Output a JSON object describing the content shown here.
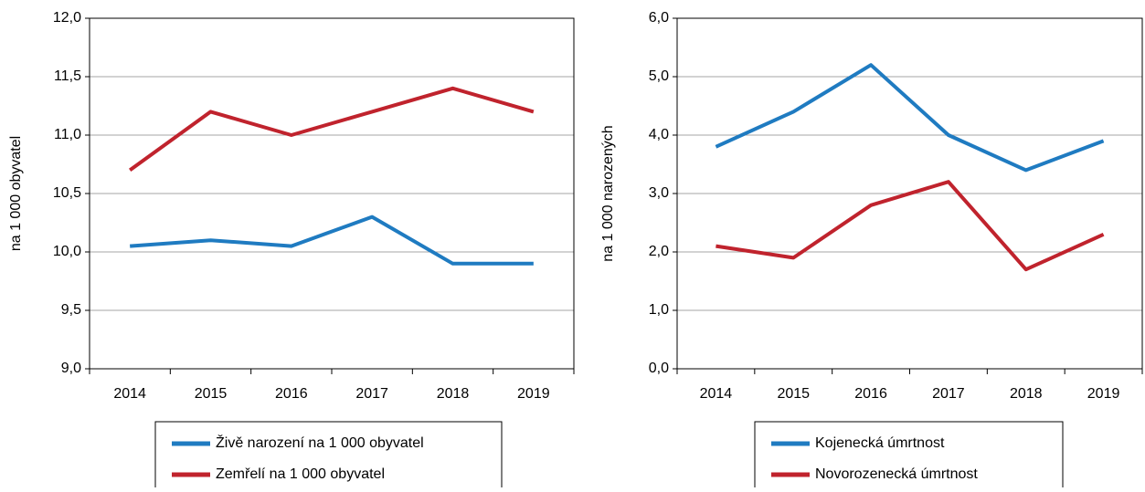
{
  "chart_data": [
    {
      "type": "line",
      "ylabel": "na 1 000 obyvatel",
      "categories": [
        "2014",
        "2015",
        "2016",
        "2017",
        "2018",
        "2019"
      ],
      "series": [
        {
          "name": "Živě narození na 1 000 obyvatel",
          "color": "#1f7bc1",
          "values": [
            10.05,
            10.1,
            10.05,
            10.3,
            9.9,
            9.9
          ]
        },
        {
          "name": "Zemřelí na 1 000 obyvatel",
          "color": "#c0232d",
          "values": [
            10.7,
            11.2,
            11.0,
            11.2,
            11.4,
            11.2
          ]
        }
      ],
      "ylim": [
        9,
        12
      ],
      "yticks": [
        {
          "value": 9,
          "label": "9,0"
        },
        {
          "value": 9.5,
          "label": "9,5"
        },
        {
          "value": 10,
          "label": "10,0"
        },
        {
          "value": 10.5,
          "label": "10,5"
        },
        {
          "value": 11,
          "label": "11,0"
        },
        {
          "value": 11.5,
          "label": "11,5"
        },
        {
          "value": 12,
          "label": "12,0"
        }
      ],
      "grid": true,
      "legend": "bottom"
    },
    {
      "type": "line",
      "ylabel": "na 1 000 narozených",
      "categories": [
        "2014",
        "2015",
        "2016",
        "2017",
        "2018",
        "2019"
      ],
      "series": [
        {
          "name": "Kojenecká úmrtnost",
          "color": "#1f7bc1",
          "values": [
            3.8,
            4.4,
            5.2,
            4.0,
            3.4,
            3.9
          ]
        },
        {
          "name": "Novorozenecká úmrtnost",
          "color": "#c0232d",
          "values": [
            2.1,
            1.9,
            2.8,
            3.2,
            1.7,
            2.3
          ]
        }
      ],
      "ylim": [
        0,
        6
      ],
      "yticks": [
        {
          "value": 0,
          "label": "0,0"
        },
        {
          "value": 1,
          "label": "1,0"
        },
        {
          "value": 2,
          "label": "2,0"
        },
        {
          "value": 3,
          "label": "3,0"
        },
        {
          "value": 4,
          "label": "4,0"
        },
        {
          "value": 5,
          "label": "5,0"
        },
        {
          "value": 6,
          "label": "6,0"
        }
      ],
      "grid": true,
      "legend": "bottom"
    }
  ]
}
